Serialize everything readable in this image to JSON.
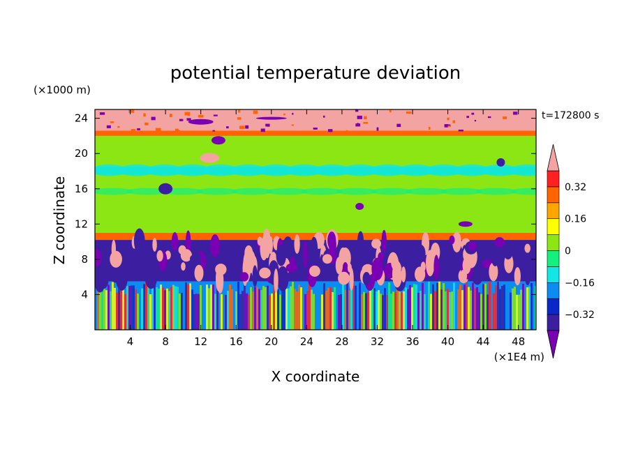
{
  "chart_data": {
    "type": "heatmap",
    "title": "potential temperature deviation",
    "xlabel": "X coordinate",
    "ylabel": "Z coordinate",
    "x_unit": "(×1E4 m)",
    "y_unit": "(×1000 m)",
    "time_label": "t=172800 s",
    "xlim": [
      0,
      50
    ],
    "ylim": [
      0,
      25
    ],
    "x_ticks": [
      4,
      8,
      12,
      16,
      20,
      24,
      28,
      32,
      36,
      40,
      44,
      48
    ],
    "y_ticks": [
      4,
      8,
      12,
      16,
      20,
      24
    ],
    "x_tick_labels": [
      "4",
      "8",
      "12",
      "16",
      "20",
      "24",
      "28",
      "32",
      "36",
      "40",
      "44",
      "48"
    ],
    "y_tick_labels": [
      "4",
      "8",
      "12",
      "16",
      "20",
      "24"
    ],
    "colorbar": {
      "levels": [
        -0.4,
        -0.32,
        -0.24,
        -0.16,
        -0.08,
        0,
        0.08,
        0.16,
        0.24,
        0.32,
        0.4
      ],
      "labels": [
        {
          "value": 0.32,
          "text": "0.32"
        },
        {
          "value": 0.16,
          "text": "0.16"
        },
        {
          "value": 0,
          "text": "0"
        },
        {
          "value": -0.16,
          "text": "−0.16"
        },
        {
          "value": -0.32,
          "text": "−0.32"
        }
      ],
      "colors": [
        "#7a00b4",
        "#3c1ea0",
        "#0a28c8",
        "#0c8cf0",
        "#12e6e6",
        "#14f07c",
        "#8ce614",
        "#ffff00",
        "#ffa500",
        "#ff6400",
        "#ff2020",
        "#f4a3a3"
      ],
      "extend": "both"
    },
    "layers": [
      {
        "z": [
          22.6,
          25
        ],
        "dominant": 0.4,
        "note": "pink top band"
      },
      {
        "z": [
          22.0,
          22.6
        ],
        "dominant": 0.28
      },
      {
        "z": [
          18.5,
          22.0
        ],
        "dominant": 0.04
      },
      {
        "z": [
          17.6,
          18.5
        ],
        "dominant": -0.06
      },
      {
        "z": [
          11.0,
          17.6
        ],
        "dominant": 0.04
      },
      {
        "z": [
          10.2,
          11.0
        ],
        "dominant": 0.28
      },
      {
        "z": [
          5.5,
          10.2
        ],
        "dominant": -0.4
      },
      {
        "z": [
          0,
          5.5
        ],
        "dominant": -0.2
      }
    ]
  }
}
